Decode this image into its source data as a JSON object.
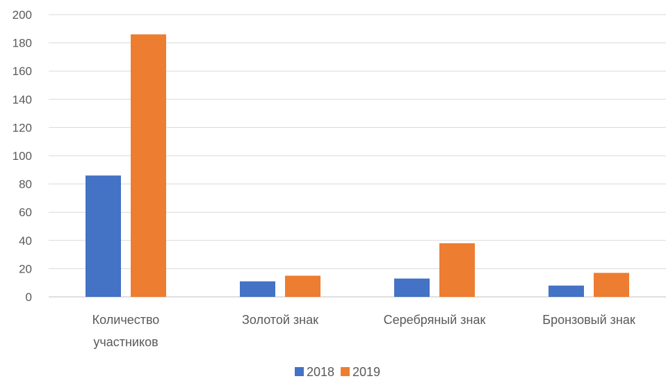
{
  "chart_data": {
    "type": "bar",
    "categories": [
      [
        "Количество",
        "участников"
      ],
      [
        "Золотой знак"
      ],
      [
        "Серебряный знак"
      ],
      [
        "Бронзовый знак"
      ]
    ],
    "series": [
      {
        "name": "2018",
        "values": [
          86,
          11,
          13,
          8
        ],
        "color": "#4472C4"
      },
      {
        "name": "2019",
        "values": [
          186,
          15,
          38,
          17
        ],
        "color": "#ED7D31"
      }
    ],
    "ylim": [
      0,
      200
    ],
    "yticks": [
      0,
      20,
      40,
      60,
      80,
      100,
      120,
      140,
      160,
      180,
      200
    ],
    "grid": true,
    "legend_position": "bottom"
  }
}
